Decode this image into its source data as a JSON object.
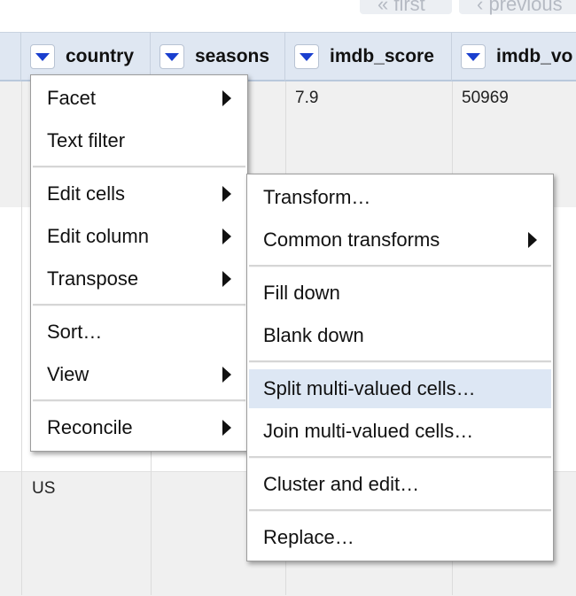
{
  "pager": {
    "first": "« first",
    "previous": "‹ previous"
  },
  "columns": [
    {
      "label": "country"
    },
    {
      "label": "seasons"
    },
    {
      "label": "imdb_score"
    },
    {
      "label": "imdb_vo"
    }
  ],
  "rows": {
    "row1": {
      "imdb_score": "7.9",
      "imdb_votes": "50969"
    },
    "row3": {
      "country": "US"
    }
  },
  "column_menu": {
    "facet": "Facet",
    "text_filter": "Text filter",
    "edit_cells": "Edit cells",
    "edit_column": "Edit column",
    "transpose": "Transpose",
    "sort": "Sort…",
    "view": "View",
    "reconcile": "Reconcile"
  },
  "edit_cells_menu": {
    "transform": "Transform…",
    "common_transforms": "Common transforms",
    "fill_down": "Fill down",
    "blank_down": "Blank down",
    "split": "Split multi-valued cells…",
    "join": "Join multi-valued cells…",
    "cluster": "Cluster and edit…",
    "replace": "Replace…"
  },
  "colors": {
    "accent": "#1a3fcf",
    "header_bg": "#dfe7f2",
    "highlight": "#dde7f4"
  }
}
